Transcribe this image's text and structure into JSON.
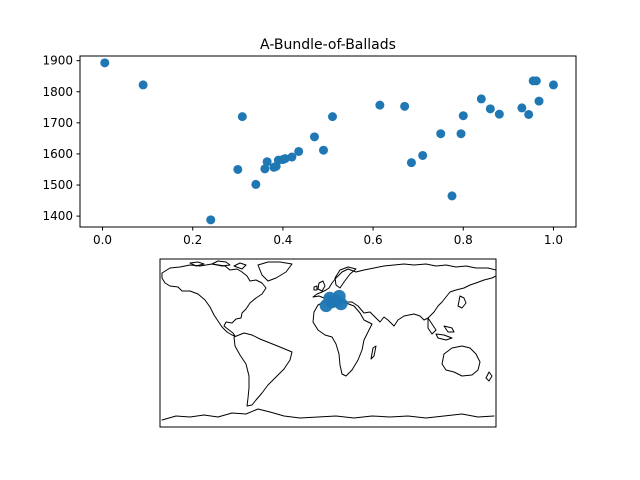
{
  "chart_data": [
    {
      "type": "scatter",
      "title": "A-Bundle-of-Ballads",
      "xlabel": "",
      "ylabel": "",
      "xlim": [
        -0.05,
        1.05
      ],
      "ylim": [
        1365,
        1915
      ],
      "xticks": [
        0.0,
        0.2,
        0.4,
        0.6,
        0.8,
        1.0
      ],
      "xtick_labels": [
        "0.0",
        "0.2",
        "0.4",
        "0.6",
        "0.8",
        "1.0"
      ],
      "yticks": [
        1400,
        1500,
        1600,
        1700,
        1800,
        1900
      ],
      "ytick_labels": [
        "1400",
        "1500",
        "1600",
        "1700",
        "1800",
        "1900"
      ],
      "grid": false,
      "color": "#1f77b4",
      "points": [
        {
          "x": 0.005,
          "y": 1893
        },
        {
          "x": 0.09,
          "y": 1822
        },
        {
          "x": 0.24,
          "y": 1388
        },
        {
          "x": 0.3,
          "y": 1550
        },
        {
          "x": 0.31,
          "y": 1720
        },
        {
          "x": 0.34,
          "y": 1502
        },
        {
          "x": 0.36,
          "y": 1552
        },
        {
          "x": 0.365,
          "y": 1575
        },
        {
          "x": 0.38,
          "y": 1557
        },
        {
          "x": 0.385,
          "y": 1560
        },
        {
          "x": 0.39,
          "y": 1580
        },
        {
          "x": 0.4,
          "y": 1582
        },
        {
          "x": 0.405,
          "y": 1585
        },
        {
          "x": 0.42,
          "y": 1590
        },
        {
          "x": 0.435,
          "y": 1608
        },
        {
          "x": 0.47,
          "y": 1655
        },
        {
          "x": 0.49,
          "y": 1612
        },
        {
          "x": 0.51,
          "y": 1720
        },
        {
          "x": 0.615,
          "y": 1757
        },
        {
          "x": 0.67,
          "y": 1753
        },
        {
          "x": 0.685,
          "y": 1572
        },
        {
          "x": 0.71,
          "y": 1595
        },
        {
          "x": 0.75,
          "y": 1665
        },
        {
          "x": 0.775,
          "y": 1465
        },
        {
          "x": 0.795,
          "y": 1665
        },
        {
          "x": 0.8,
          "y": 1723
        },
        {
          "x": 0.84,
          "y": 1777
        },
        {
          "x": 0.86,
          "y": 1745
        },
        {
          "x": 0.88,
          "y": 1728
        },
        {
          "x": 0.93,
          "y": 1748
        },
        {
          "x": 0.945,
          "y": 1727
        },
        {
          "x": 0.955,
          "y": 1835
        },
        {
          "x": 0.962,
          "y": 1835
        },
        {
          "x": 0.968,
          "y": 1770
        },
        {
          "x": 1.0,
          "y": 1822
        }
      ]
    },
    {
      "type": "map",
      "projection": "plate-carree",
      "extent_lon": [
        -180,
        180
      ],
      "extent_lat": [
        -90,
        90
      ],
      "coastlines": true,
      "color": "#1f77b4",
      "locations": [
        {
          "lon": -2,
          "lat": 40
        },
        {
          "lon": 4,
          "lat": 44
        },
        {
          "lon": 10,
          "lat": 45
        },
        {
          "lon": 14,
          "lat": 42
        },
        {
          "lon": 2,
          "lat": 48
        },
        {
          "lon": 12,
          "lat": 50
        }
      ]
    }
  ]
}
